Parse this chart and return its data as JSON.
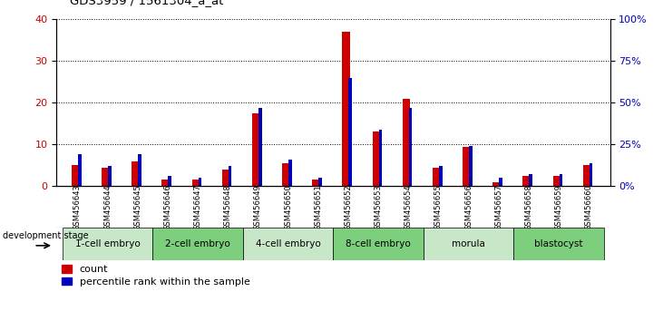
{
  "title": "GDS3959 / 1561304_a_at",
  "samples": [
    "GSM456643",
    "GSM456644",
    "GSM456645",
    "GSM456646",
    "GSM456647",
    "GSM456648",
    "GSM456649",
    "GSM456650",
    "GSM456651",
    "GSM456652",
    "GSM456653",
    "GSM456654",
    "GSM456655",
    "GSM456656",
    "GSM456657",
    "GSM456658",
    "GSM456659",
    "GSM456660"
  ],
  "count": [
    5,
    4.5,
    6,
    1.5,
    1.5,
    4,
    17.5,
    5.5,
    1.5,
    37,
    13,
    21,
    4.5,
    9.5,
    1,
    2.5,
    2.5,
    5
  ],
  "percentile_pct": [
    19,
    12,
    19,
    6,
    5,
    12,
    47,
    16,
    5,
    65,
    34,
    47,
    12,
    24,
    5,
    7,
    7,
    14
  ],
  "stages": [
    {
      "label": "1-cell embryo",
      "start": 0,
      "end": 3,
      "color": "#c8e6c8"
    },
    {
      "label": "2-cell embryo",
      "start": 3,
      "end": 6,
      "color": "#7dce7d"
    },
    {
      "label": "4-cell embryo",
      "start": 6,
      "end": 9,
      "color": "#c8e6c8"
    },
    {
      "label": "8-cell embryo",
      "start": 9,
      "end": 12,
      "color": "#7dce7d"
    },
    {
      "label": "morula",
      "start": 12,
      "end": 15,
      "color": "#c8e6c8"
    },
    {
      "label": "blastocyst",
      "start": 15,
      "end": 18,
      "color": "#7dce7d"
    }
  ],
  "ylim_left": [
    0,
    40
  ],
  "ylim_right": [
    0,
    100
  ],
  "yticks_left": [
    0,
    10,
    20,
    30,
    40
  ],
  "yticks_right": [
    0,
    25,
    50,
    75,
    100
  ],
  "red_color": "#cc0000",
  "blue_color": "#0000bb",
  "gray_band": "#c8c8c8",
  "bg_color": "#ffffff",
  "grid_color": "#000000"
}
